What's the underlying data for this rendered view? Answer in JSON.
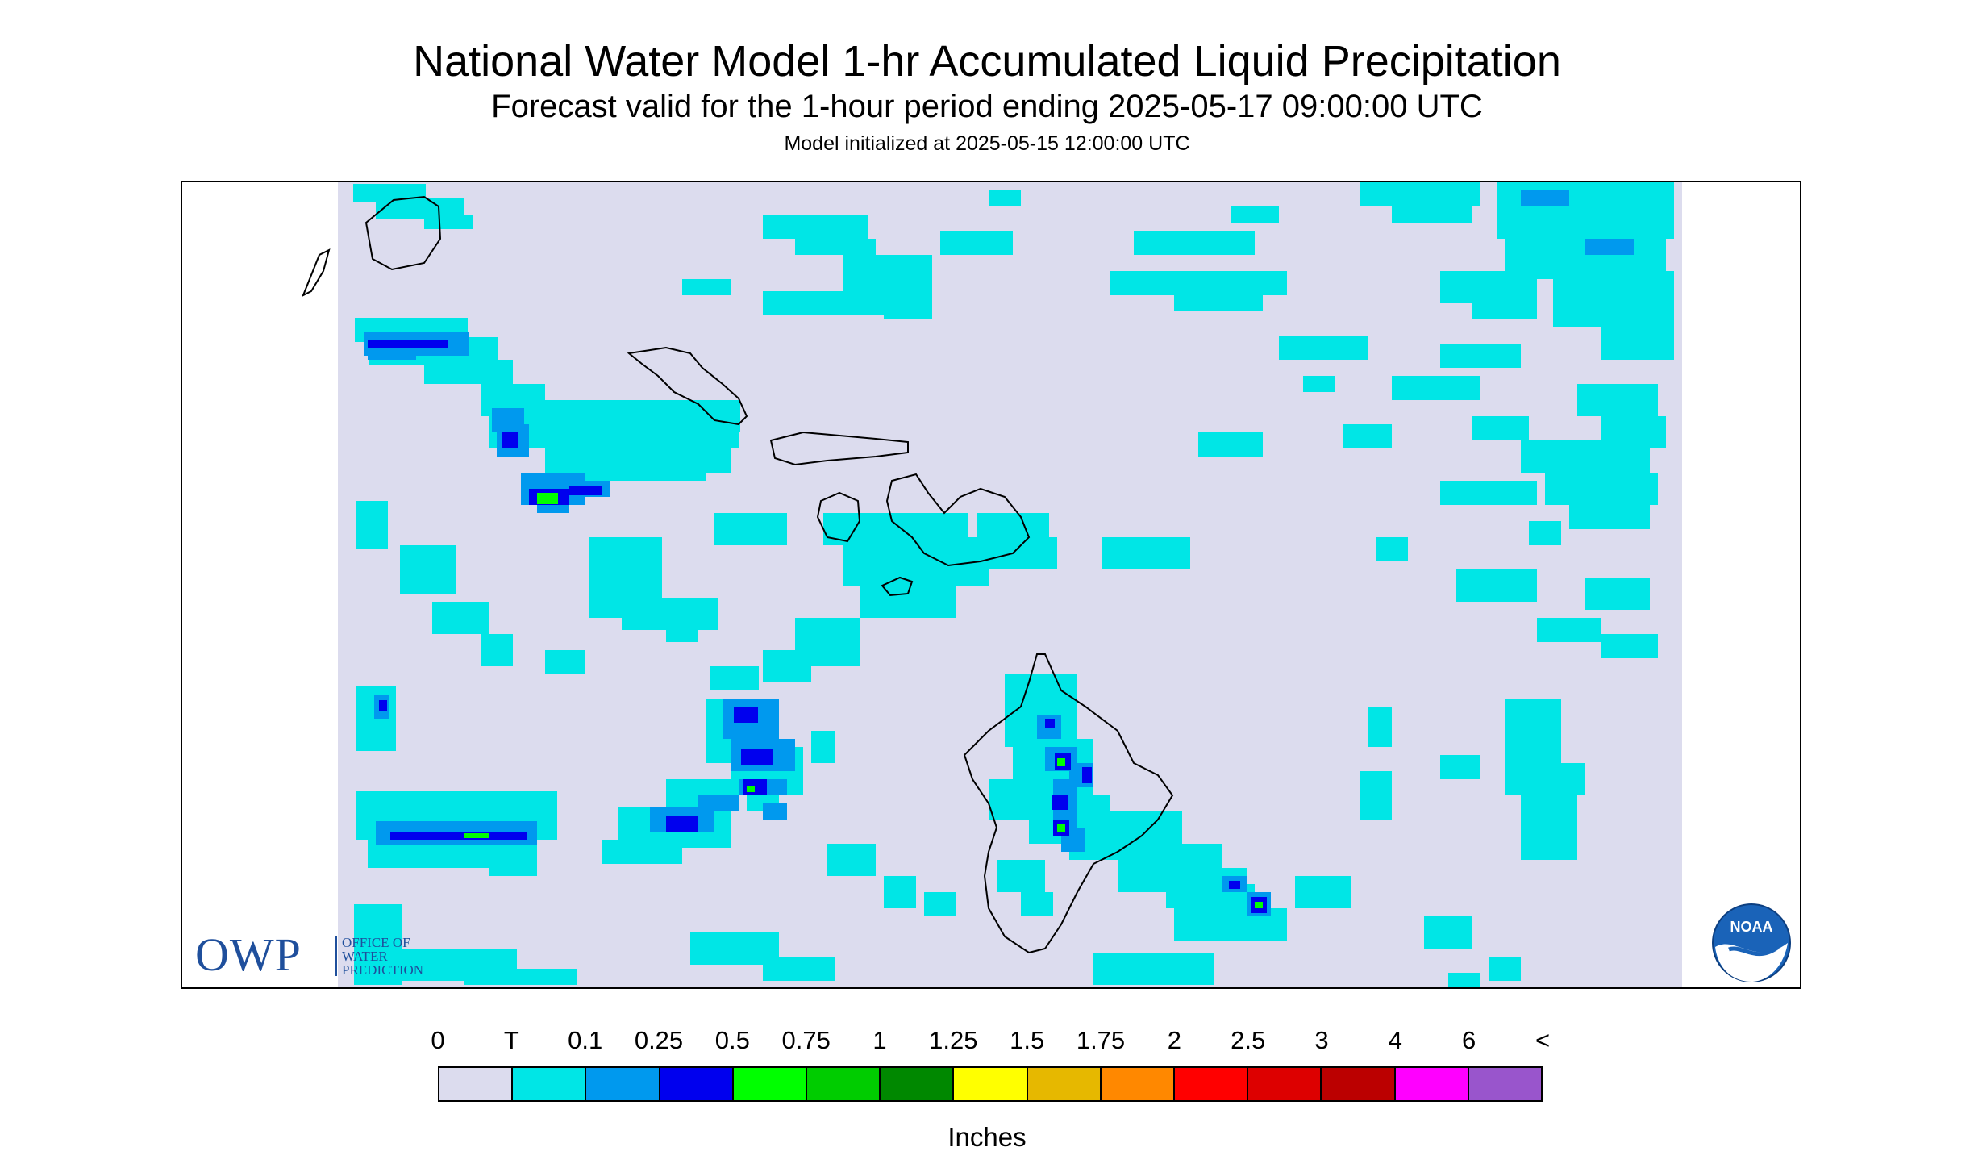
{
  "header": {
    "title": "National Water Model 1-hr Accumulated Liquid Precipitation",
    "subtitle": "Forecast valid for the 1-hour period ending 2025-05-17 09:00:00 UTC",
    "init": "Model initialized at 2025-05-15 12:00:00 UTC"
  },
  "map": {
    "background_color": "#dcdcee",
    "coastline_color": "#000000",
    "owp_logo": {
      "big": "OWP",
      "line1": "OFFICE OF",
      "line2": "WATER",
      "line3": "PREDICTION",
      "color": "#1f4f9c"
    },
    "noaa_logo": {
      "text": "NOAA",
      "color": "#1a63b8"
    }
  },
  "legend": {
    "labels": [
      "0",
      "T",
      "0.1",
      "0.25",
      "0.5",
      "0.75",
      "1",
      "1.25",
      "1.5",
      "1.75",
      "2",
      "2.5",
      "3",
      "4",
      "6",
      "<"
    ],
    "colors": [
      "#dcdcee",
      "#00e6e6",
      "#0099ee",
      "#0000ee",
      "#00ff00",
      "#00cc00",
      "#008800",
      "#ffff00",
      "#e6b800",
      "#ff8800",
      "#ff0000",
      "#dd0000",
      "#bb0000",
      "#ff00ff",
      "#9955cc"
    ],
    "units": "Inches"
  }
}
